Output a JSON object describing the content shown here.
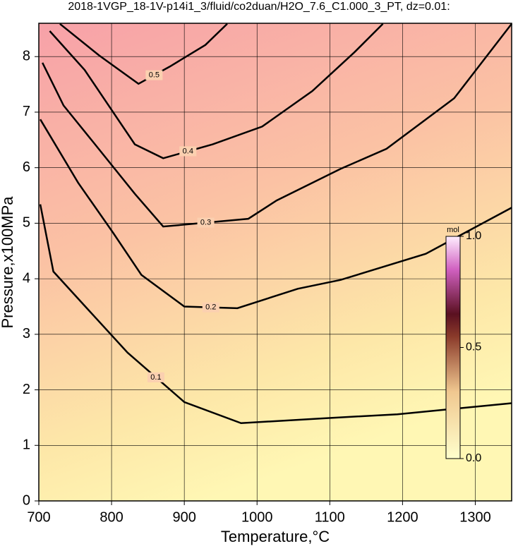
{
  "chart_data": {
    "type": "contour",
    "title": "2018-1VGP_18-1V-p14i1_3/fluid/co2duan/H2O_7.6_C1.000_3_PT, dz=0.01:",
    "xlabel": "Temperature,°C",
    "ylabel": "Pressure,x100MPa",
    "xlim": [
      700,
      1350
    ],
    "ylim": [
      0,
      8.6
    ],
    "xticks": [
      700,
      800,
      900,
      1000,
      1100,
      1200,
      1300
    ],
    "yticks": [
      0,
      1,
      2,
      3,
      4,
      5,
      6,
      7,
      8
    ],
    "grid": true,
    "line_color": "#000000",
    "contours": [
      {
        "level": 0.1,
        "x": [
          702,
          720,
          773,
          822,
          900,
          978,
          1095,
          1193,
          1350
        ],
        "y": [
          5.34,
          4.13,
          3.37,
          2.67,
          1.78,
          1.4,
          1.49,
          1.56,
          1.76
        ]
      },
      {
        "level": 0.2,
        "x": [
          702,
          754,
          802,
          841,
          900,
          973,
          1056,
          1115,
          1232,
          1350
        ],
        "y": [
          6.87,
          5.73,
          4.83,
          4.07,
          3.5,
          3.47,
          3.82,
          3.98,
          4.45,
          5.28
        ]
      },
      {
        "level": 0.3,
        "x": [
          705,
          734,
          773,
          832,
          871,
          988,
          1027,
          1115,
          1178,
          1271,
          1350
        ],
        "y": [
          7.89,
          7.12,
          6.49,
          5.53,
          4.94,
          5.08,
          5.41,
          5.98,
          6.34,
          7.25,
          8.59
        ]
      },
      {
        "level": 0.4,
        "x": [
          715,
          763,
          832,
          871,
          939,
          1007,
          1076,
          1134,
          1173
        ],
        "y": [
          8.46,
          7.76,
          6.42,
          6.17,
          6.42,
          6.74,
          7.38,
          8.08,
          8.59
        ]
      },
      {
        "level": 0.5,
        "x": [
          729,
          783,
          837,
          880,
          929,
          959
        ],
        "y": [
          8.59,
          8.02,
          7.51,
          7.82,
          8.21,
          8.59
        ]
      }
    ],
    "colorbar": {
      "label": "mol",
      "lim": [
        0,
        1
      ],
      "ticks": [
        {
          "value": 0,
          "label": "0.0"
        },
        {
          "value": 0.5,
          "label": "0.5"
        },
        {
          "value": 1,
          "label": "1.0"
        }
      ]
    }
  }
}
